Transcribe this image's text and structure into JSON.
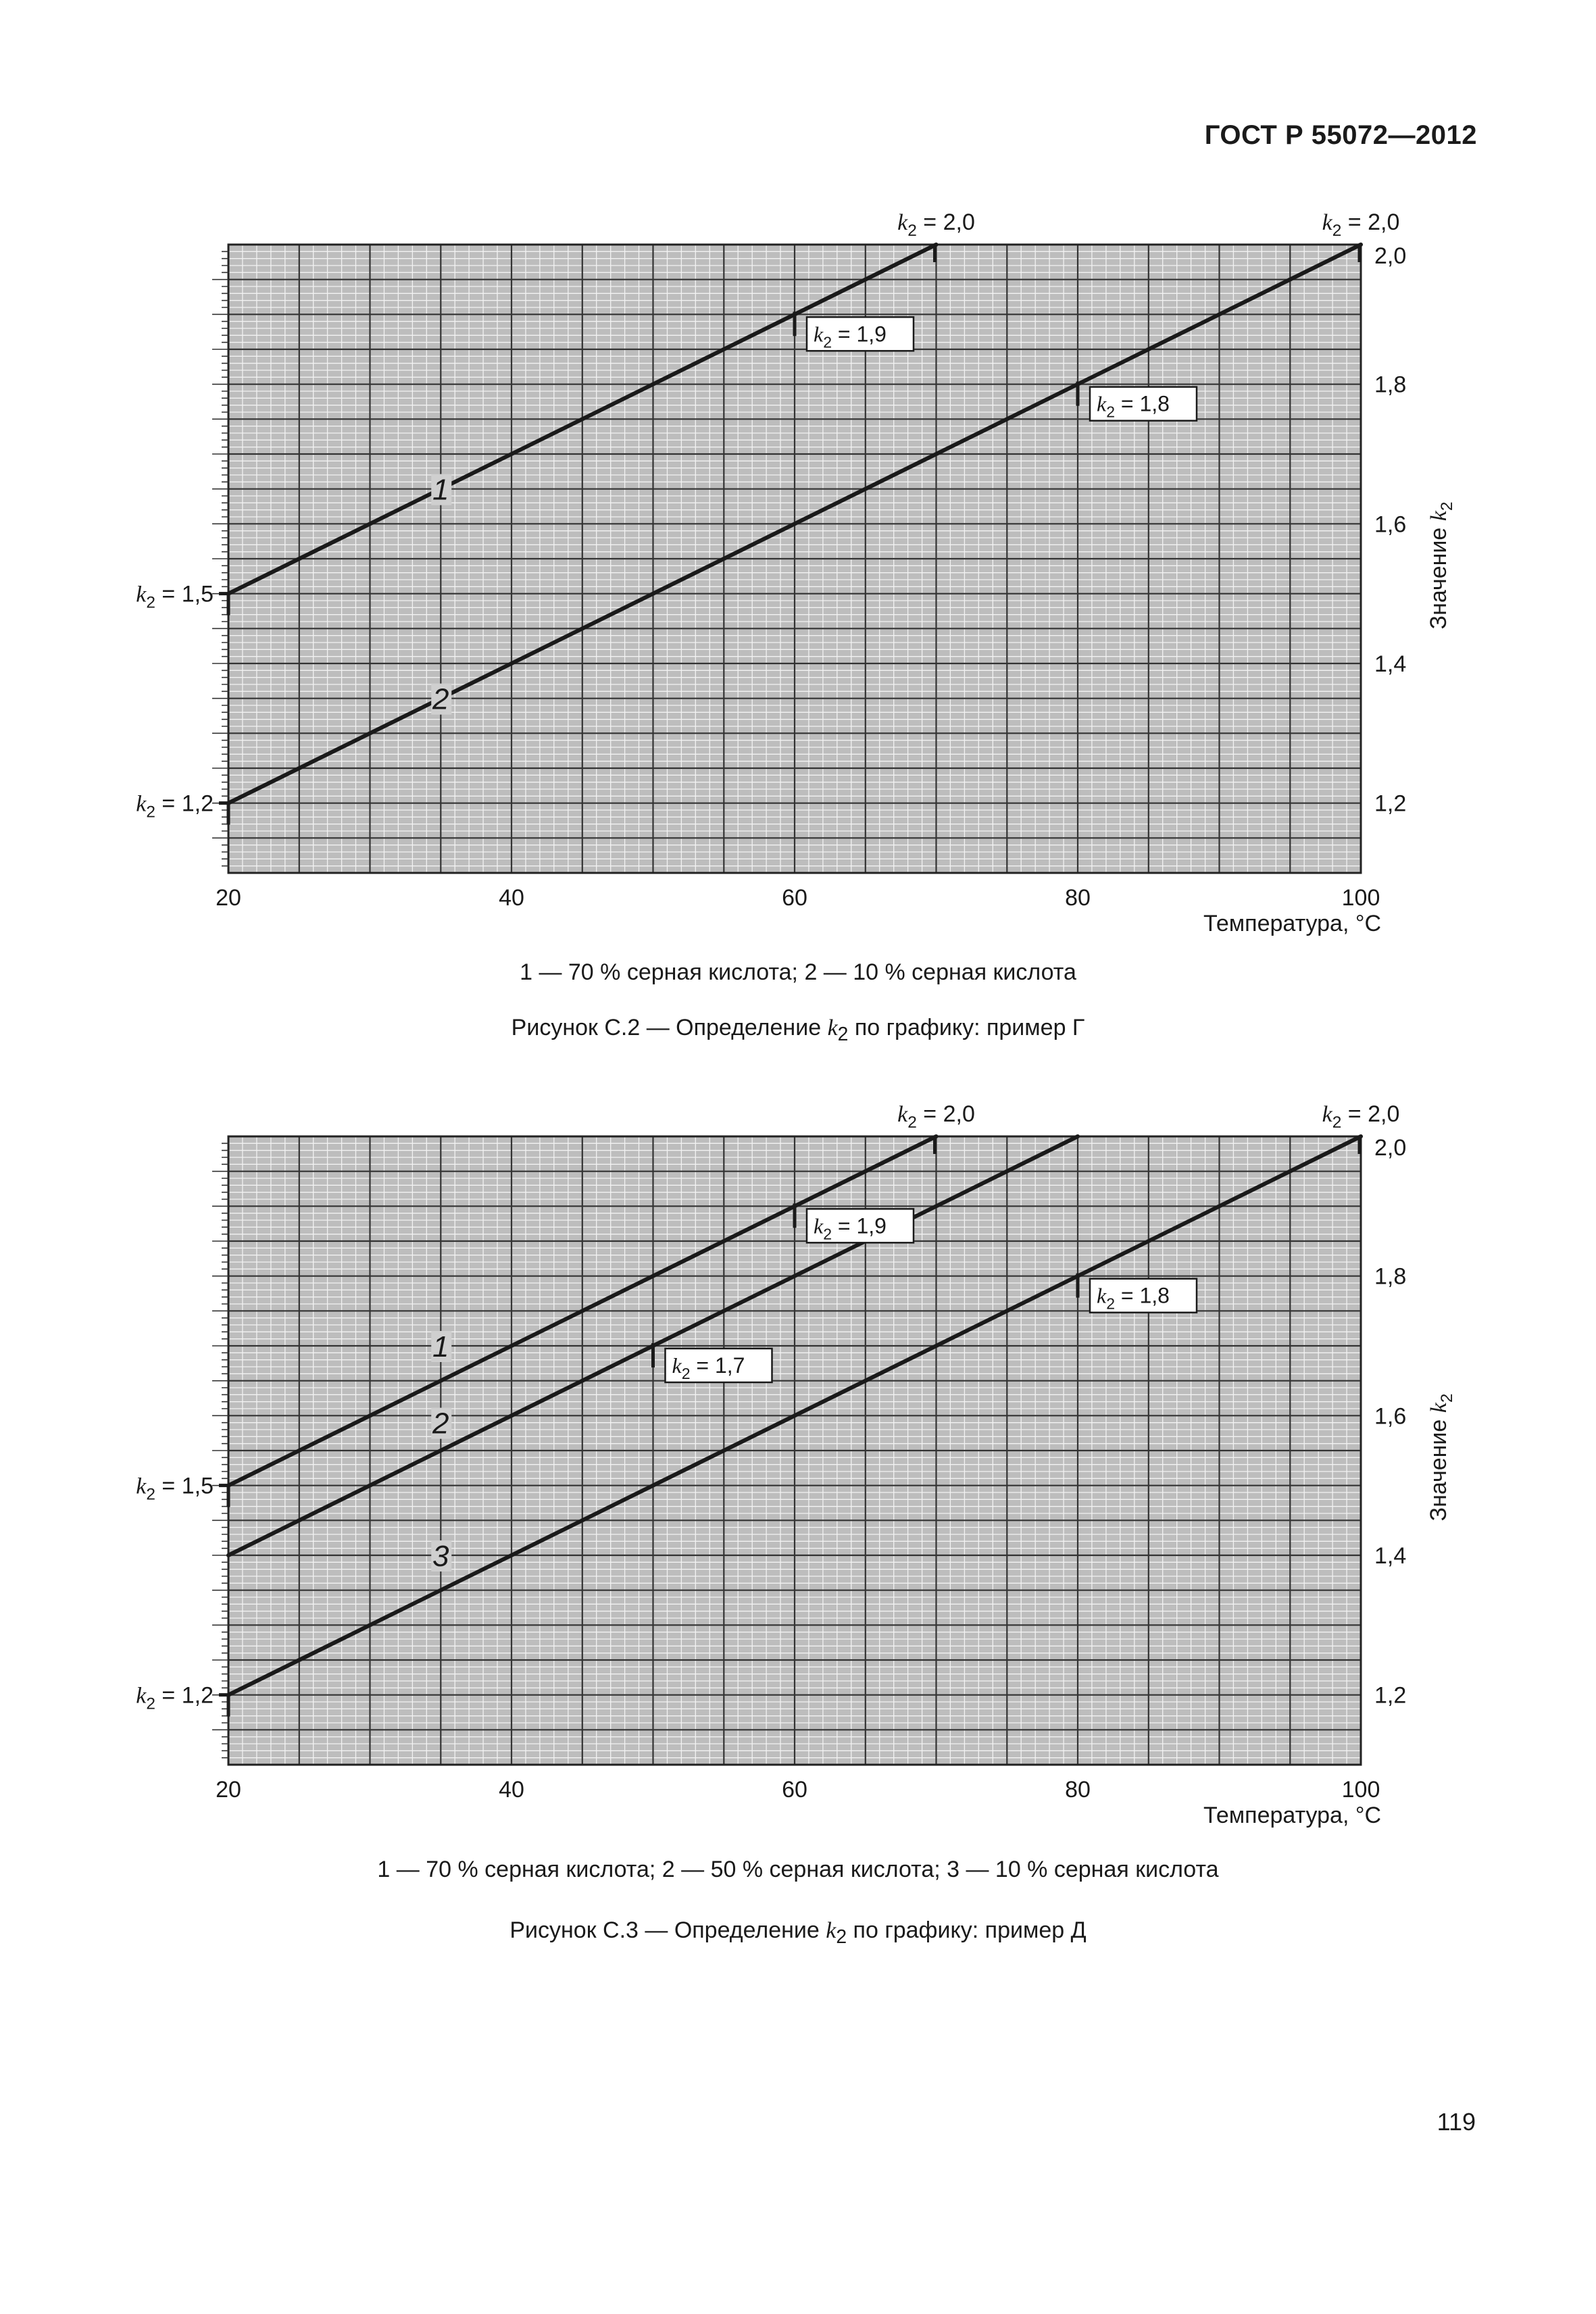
{
  "header": {
    "standard": "ГОСТ Р 55072—2012"
  },
  "page_number": "119",
  "figures": [
    {
      "legend": "1 — 70 % серная кислота; 2 — 10 % серная кислота",
      "caption_before": "Рисунок С.2 — Определение ",
      "caption_symbol": "k",
      "caption_sub": "2",
      "caption_after": " по графику: пример Г"
    },
    {
      "legend": "1 — 70 % серная кислота; 2 — 50 % серная кислота; 3 — 10 % серная кислота",
      "caption_before": "Рисунок С.3 — Определение ",
      "caption_symbol": "k",
      "caption_sub": "2",
      "caption_after": " по графику: пример Д"
    }
  ],
  "chart_data": [
    {
      "type": "line",
      "xlabel": "Температура, °С",
      "ylabel_text": "Значение ",
      "ylabel_symbol": "k",
      "ylabel_sub": "2",
      "xlim": [
        20,
        100
      ],
      "ylim": [
        1.1,
        2.0
      ],
      "xticks": [
        20,
        40,
        60,
        80,
        100
      ],
      "xtick_labels": [
        "20",
        "40",
        "60",
        "80",
        "100"
      ],
      "yticks": [
        1.2,
        1.4,
        1.6,
        1.8,
        2.0
      ],
      "ytick_labels": [
        "1,2",
        "1,4",
        "1,6",
        "1,8",
        "2,0"
      ],
      "grid": true,
      "series": [
        {
          "name": "1",
          "x": [
            20,
            70
          ],
          "y": [
            1.5,
            2.0
          ],
          "label_at": [
            35,
            1.65
          ]
        },
        {
          "name": "2",
          "x": [
            20,
            100
          ],
          "y": [
            1.2,
            2.0
          ],
          "label_at": [
            35,
            1.35
          ]
        }
      ],
      "annotations": [
        {
          "symbol": "k",
          "sub": "2",
          "text": " = 2,0",
          "x": 70,
          "y": 2.0,
          "position": "top",
          "boxed": false
        },
        {
          "symbol": "k",
          "sub": "2",
          "text": " = 2,0",
          "x": 100,
          "y": 2.0,
          "position": "top",
          "boxed": false
        },
        {
          "symbol": "k",
          "sub": "2",
          "text": " = 1,9",
          "x": 60,
          "y": 1.9,
          "position": "below-right",
          "boxed": true
        },
        {
          "symbol": "k",
          "sub": "2",
          "text": " = 1,8",
          "x": 80,
          "y": 1.8,
          "position": "below-right",
          "boxed": true
        },
        {
          "symbol": "k",
          "sub": "2",
          "text": " = 1,5",
          "x": 20,
          "y": 1.5,
          "position": "left",
          "boxed": false
        },
        {
          "symbol": "k",
          "sub": "2",
          "text": " = 1,2",
          "x": 20,
          "y": 1.2,
          "position": "left",
          "boxed": false
        }
      ]
    },
    {
      "type": "line",
      "xlabel": "Температура, °С",
      "ylabel_text": "Значение ",
      "ylabel_symbol": "k",
      "ylabel_sub": "2",
      "xlim": [
        20,
        100
      ],
      "ylim": [
        1.1,
        2.0
      ],
      "xticks": [
        20,
        40,
        60,
        80,
        100
      ],
      "xtick_labels": [
        "20",
        "40",
        "60",
        "80",
        "100"
      ],
      "yticks": [
        1.2,
        1.4,
        1.6,
        1.8,
        2.0
      ],
      "ytick_labels": [
        "1,2",
        "1,4",
        "1,6",
        "1,8",
        "2,0"
      ],
      "grid": true,
      "series": [
        {
          "name": "1",
          "x": [
            20,
            70
          ],
          "y": [
            1.5,
            2.0
          ],
          "label_at": [
            35,
            1.7
          ]
        },
        {
          "name": "2",
          "x": [
            20,
            80
          ],
          "y": [
            1.4,
            2.0
          ],
          "label_at": [
            35,
            1.59
          ]
        },
        {
          "name": "3",
          "x": [
            20,
            100
          ],
          "y": [
            1.2,
            2.0
          ],
          "label_at": [
            35,
            1.4
          ]
        }
      ],
      "annotations": [
        {
          "symbol": "k",
          "sub": "2",
          "text": " = 2,0",
          "x": 70,
          "y": 2.0,
          "position": "top",
          "boxed": false
        },
        {
          "symbol": "k",
          "sub": "2",
          "text": " = 2,0",
          "x": 100,
          "y": 2.0,
          "position": "top",
          "boxed": false
        },
        {
          "symbol": "k",
          "sub": "2",
          "text": " = 1,9",
          "x": 60,
          "y": 1.9,
          "position": "below-right",
          "boxed": true
        },
        {
          "symbol": "k",
          "sub": "2",
          "text": " = 1,7",
          "x": 50,
          "y": 1.7,
          "position": "below-right",
          "boxed": true
        },
        {
          "symbol": "k",
          "sub": "2",
          "text": " = 1,8",
          "x": 80,
          "y": 1.8,
          "position": "below-right",
          "boxed": true
        },
        {
          "symbol": "k",
          "sub": "2",
          "text": " = 1,5",
          "x": 20,
          "y": 1.5,
          "position": "left",
          "boxed": false
        },
        {
          "symbol": "k",
          "sub": "2",
          "text": " = 1,2",
          "x": 20,
          "y": 1.2,
          "position": "left",
          "boxed": false
        }
      ]
    }
  ]
}
